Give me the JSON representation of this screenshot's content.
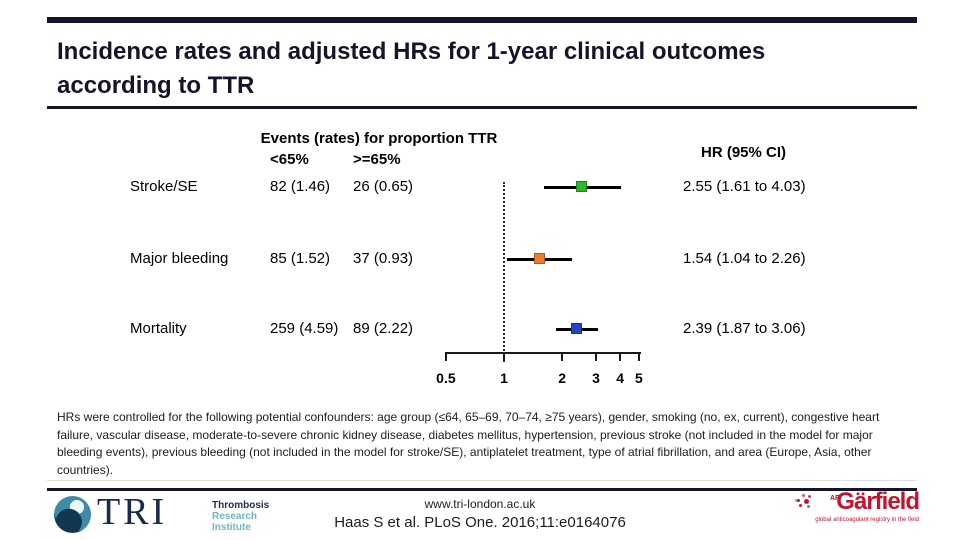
{
  "slide": {
    "title_line1": "Incidence rates and adjusted HRs for 1-year clinical outcomes",
    "title_line2": "according to TTR"
  },
  "chart_data": {
    "type": "forest",
    "events_header": "Events (rates) for proportion TTR",
    "group_headers": [
      "<65%",
      ">=65%"
    ],
    "hr_header": "HR (95% CI)",
    "x_scale": "log",
    "x_range": [
      0.5,
      5
    ],
    "x_ticks": [
      "0.5",
      "1",
      "2",
      "3",
      "4",
      "5"
    ],
    "reference_line": 1,
    "rows": [
      {
        "label": "Stroke/SE",
        "events_lt65": "82 (1.46)",
        "events_ge65": "26 (0.65)",
        "hr": 2.55,
        "ci_low": 1.61,
        "ci_high": 4.03,
        "hr_text": "2.55 (1.61 to 4.03)",
        "marker_color": "#2eb82e"
      },
      {
        "label": "Major bleeding",
        "events_lt65": "85 (1.52)",
        "events_ge65": "37 (0.93)",
        "hr": 1.54,
        "ci_low": 1.04,
        "ci_high": 2.26,
        "hr_text": "1.54 (1.04 to 2.26)",
        "marker_color": "#ed7d31"
      },
      {
        "label": "Mortality",
        "events_lt65": "259 (4.59)",
        "events_ge65": "89 (2.22)",
        "hr": 2.39,
        "ci_low": 1.87,
        "ci_high": 3.06,
        "hr_text": "2.39 (1.87 to 3.06)",
        "marker_color": "#2544c6"
      }
    ]
  },
  "footnote": "HRs were controlled for the following potential confounders: age group (≤64, 65–69, 70–74, ≥75 years), gender, smoking (no, ex, current), congestive heart failure, vascular disease, moderate-to-severe chronic kidney disease, diabetes mellitus, hypertension, previous stroke (not included in the model for major bleeding events), previous bleeding (not included in the model for stroke/SE), antiplatelet treatment, type of atrial fibrillation, and area (Europe, Asia, other countries).",
  "footer": {
    "url": "www.tri-london.ac.uk",
    "citation": "Haas S et al. PLoS One. 2016;11:e0164076",
    "tri": {
      "acronym": "TRI",
      "line1": "Thrombosis",
      "line2": "Research",
      "line3": "Institute"
    },
    "garfield": {
      "name": "Gärfield",
      "af": "AF",
      "tagline": "global anticoagulant registry in the field"
    }
  },
  "colors": {
    "accent_dark": "#14142b",
    "marker_green": "#2eb82e",
    "marker_orange": "#ed7d31",
    "marker_blue": "#2544c6",
    "garfield_red": "#c41432",
    "tri_navy": "#1b2a4a",
    "tri_teal": "#72b5c2"
  }
}
